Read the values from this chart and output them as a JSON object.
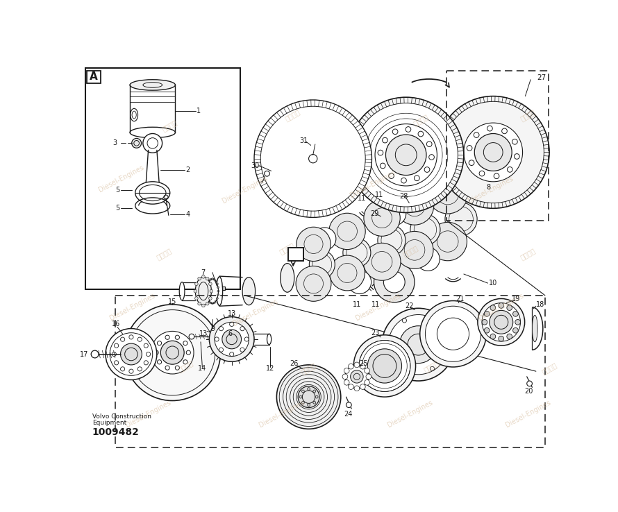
{
  "bg_color": "#ffffff",
  "line_color": "#1a1a1a",
  "fig_width": 8.9,
  "fig_height": 7.38,
  "dpi": 100,
  "watermark_color": "#d4b896",
  "box_A_label": "A",
  "title_line1": "Volvo Construction",
  "title_line2": "Equipment",
  "title_part": "1009482"
}
